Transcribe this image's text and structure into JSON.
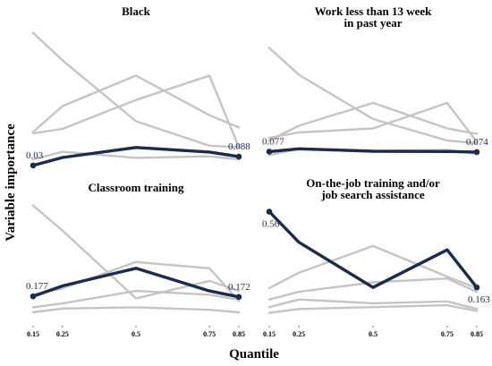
{
  "figure": {
    "ylabel": "Variable importance",
    "xlabel": "Quantile"
  },
  "chart_data": [
    {
      "type": "line",
      "title": "Black",
      "x": [
        0.15,
        0.25,
        0.5,
        0.75,
        0.85
      ],
      "x_tick_labels": [],
      "series": [
        {
          "role": "background",
          "values": [
            0.9,
            0.72,
            0.32,
            0.16,
            0.15
          ]
        },
        {
          "role": "background",
          "values": [
            0.25,
            0.42,
            0.62,
            0.36,
            0.28
          ]
        },
        {
          "role": "background",
          "values": [
            0.24,
            0.27,
            0.46,
            0.62,
            0.15
          ]
        },
        {
          "role": "background",
          "values": [
            0.07,
            0.12,
            0.08,
            0.09,
            0.07
          ]
        },
        {
          "role": "highlight",
          "values": [
            0.03,
            0.082,
            0.148,
            0.118,
            0.088
          ]
        }
      ],
      "data_labels": [
        {
          "x": 0.15,
          "text": "0.03"
        },
        {
          "x": 0.85,
          "text": "0.088"
        }
      ],
      "ylim": [
        0,
        0.94
      ]
    },
    {
      "type": "line",
      "title": "Work less than 13 week\nin past year",
      "x": [
        0.15,
        0.25,
        0.5,
        0.75,
        0.85
      ],
      "x_tick_labels": [],
      "series": [
        {
          "role": "background",
          "values": [
            0.85,
            0.65,
            0.32,
            0.16,
            0.14
          ]
        },
        {
          "role": "background",
          "values": [
            0.16,
            0.27,
            0.44,
            0.25,
            0.21
          ]
        },
        {
          "role": "background",
          "values": [
            0.18,
            0.22,
            0.25,
            0.44,
            0.15
          ]
        },
        {
          "role": "background",
          "values": [
            0.05,
            0.1,
            0.08,
            0.09,
            0.06
          ]
        },
        {
          "role": "highlight",
          "values": [
            0.077,
            0.098,
            0.08,
            0.078,
            0.074
          ]
        }
      ],
      "data_labels": [
        {
          "x": 0.15,
          "text": "0.077"
        },
        {
          "x": 0.85,
          "text": "0.074"
        }
      ],
      "ylim": [
        0,
        0.94
      ]
    },
    {
      "type": "line",
      "title": "Classroom training",
      "x": [
        0.15,
        0.25,
        0.5,
        0.75,
        0.85
      ],
      "x_tick_labels": [],
      "series": [
        {
          "role": "background",
          "values": [
            0.9,
            0.7,
            0.16,
            0.3,
            0.22
          ]
        },
        {
          "role": "background",
          "values": [
            0.19,
            0.24,
            0.45,
            0.4,
            0.14
          ]
        },
        {
          "role": "background",
          "values": [
            0.09,
            0.12,
            0.22,
            0.19,
            0.15
          ]
        },
        {
          "role": "background",
          "values": [
            0.05,
            0.08,
            0.09,
            0.07,
            0.05
          ]
        },
        {
          "role": "highlight",
          "values": [
            0.177,
            0.26,
            0.4,
            0.22,
            0.172
          ]
        }
      ],
      "data_labels": [
        {
          "x": 0.15,
          "text": "0.177"
        },
        {
          "x": 0.85,
          "text": "0.172"
        }
      ],
      "ylim": [
        0,
        0.94
      ]
    },
    {
      "type": "line",
      "title": "On-the-job training and/or\njob search assistance",
      "x": [
        0.15,
        0.25,
        0.5,
        0.75,
        0.85
      ],
      "x_tick_labels": [
        "0.15",
        "0.25",
        "0.5",
        "0.75",
        "0.85"
      ],
      "series": [
        {
          "role": "background",
          "values": [
            0.16,
            0.24,
            0.38,
            0.22,
            0.16
          ]
        },
        {
          "role": "background",
          "values": [
            0.1,
            0.14,
            0.19,
            0.21,
            0.14
          ]
        },
        {
          "role": "background",
          "values": [
            0.06,
            0.1,
            0.08,
            0.09,
            0.05
          ]
        },
        {
          "role": "background",
          "values": [
            0.03,
            0.05,
            0.06,
            0.07,
            0.04
          ]
        },
        {
          "role": "highlight",
          "values": [
            0.56,
            0.4,
            0.163,
            0.36,
            0.163
          ]
        }
      ],
      "data_labels": [
        {
          "x": 0.15,
          "text": "0.56"
        },
        {
          "x": 0.85,
          "text": "0.163"
        }
      ],
      "ylim": [
        0,
        0.6
      ]
    }
  ],
  "colors": {
    "background_line": "#c4c4c4",
    "highlight_line": "#1a2b4c",
    "label_text": "#1a2b4c"
  }
}
